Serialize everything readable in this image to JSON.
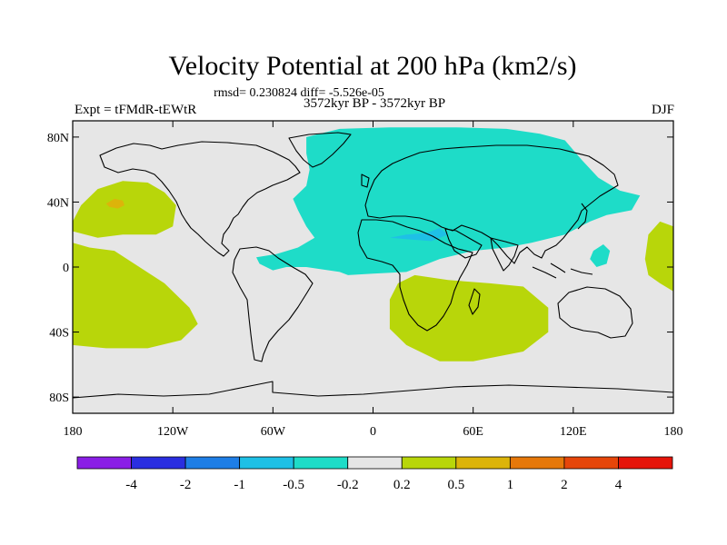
{
  "chart_data": {
    "type": "heatmap",
    "title": "Velocity Potential at 200 hPa (km2/s)",
    "subtitle_stats": "rmsd= 0.230824 diff= -5.526e-05",
    "left_label": "Expt = tFMdR-tEWtR",
    "center_label": "3572kyr BP - 3572kyr BP",
    "right_label": "DJF",
    "x_range": [
      -180,
      180
    ],
    "y_range": [
      -90,
      90
    ],
    "x_ticks": [
      {
        "value": -180,
        "label": "180"
      },
      {
        "value": -120,
        "label": "120W"
      },
      {
        "value": -60,
        "label": "60W"
      },
      {
        "value": 0,
        "label": "0"
      },
      {
        "value": 60,
        "label": "60E"
      },
      {
        "value": 120,
        "label": "120E"
      },
      {
        "value": 180,
        "label": "180"
      }
    ],
    "y_ticks": [
      {
        "value": 80,
        "label": "80N"
      },
      {
        "value": 40,
        "label": "40N"
      },
      {
        "value": 0,
        "label": "0"
      },
      {
        "value": -40,
        "label": "40S"
      },
      {
        "value": -80,
        "label": "80S"
      }
    ],
    "colorbar": {
      "colors": [
        "#8a1ee6",
        "#2a2ee0",
        "#1e7ee6",
        "#1ec0e6",
        "#1edcc8",
        "#e6e6e6",
        "#b8d60a",
        "#dcb40a",
        "#e6780a",
        "#e6460a",
        "#e6140a"
      ],
      "labels": [
        "-4",
        "-2",
        "-1",
        "-0.5",
        "-0.2",
        "0.2",
        "0.5",
        "1",
        "2",
        "4"
      ]
    },
    "regions": [
      {
        "name": "eurasia-africa-negative",
        "level": "-0.5 to -0.2",
        "color": "#1edcc8",
        "outline": [
          [
            -40,
            80
          ],
          [
            -20,
            85
          ],
          [
            10,
            86
          ],
          [
            50,
            86
          ],
          [
            80,
            85
          ],
          [
            100,
            82
          ],
          [
            115,
            78
          ],
          [
            125,
            66
          ],
          [
            135,
            55
          ],
          [
            148,
            47
          ],
          [
            160,
            44
          ],
          [
            155,
            35
          ],
          [
            140,
            32
          ],
          [
            130,
            28
          ],
          [
            115,
            20
          ],
          [
            95,
            15
          ],
          [
            80,
            12
          ],
          [
            60,
            10
          ],
          [
            40,
            5
          ],
          [
            20,
            -3
          ],
          [
            0,
            -4
          ],
          [
            -15,
            -5
          ],
          [
            -20,
            -3
          ],
          [
            -40,
            0
          ],
          [
            -52,
            0
          ],
          [
            -60,
            -2
          ],
          [
            -68,
            2
          ],
          [
            -70,
            6
          ],
          [
            -58,
            8
          ],
          [
            -45,
            12
          ],
          [
            -35,
            18
          ],
          [
            -40,
            25
          ],
          [
            -45,
            35
          ],
          [
            -48,
            42
          ],
          [
            -40,
            50
          ],
          [
            -38,
            60
          ],
          [
            -40,
            70
          ]
        ]
      },
      {
        "name": "western-pacific-negative",
        "level": "-0.5 to -0.2",
        "color": "#1edcc8",
        "outline": [
          [
            130,
            5
          ],
          [
            132,
            10
          ],
          [
            138,
            14
          ],
          [
            142,
            10
          ],
          [
            140,
            2
          ],
          [
            134,
            0
          ]
        ]
      },
      {
        "name": "arabia-negative-core",
        "level": "-1 to -0.5",
        "color": "#1ec0e6",
        "outline": [
          [
            10,
            18
          ],
          [
            20,
            20
          ],
          [
            32,
            21
          ],
          [
            40,
            24
          ],
          [
            45,
            20
          ],
          [
            35,
            16
          ],
          [
            22,
            17
          ]
        ]
      },
      {
        "name": "north-pacific-positive",
        "level": "0.2 to 0.5",
        "color": "#b8d60a",
        "outline": [
          [
            -180,
            28
          ],
          [
            -175,
            38
          ],
          [
            -165,
            48
          ],
          [
            -150,
            53
          ],
          [
            -135,
            52
          ],
          [
            -125,
            46
          ],
          [
            -118,
            38
          ],
          [
            -120,
            25
          ],
          [
            -130,
            20
          ],
          [
            -150,
            20
          ],
          [
            -165,
            18
          ],
          [
            -180,
            22
          ]
        ]
      },
      {
        "name": "north-pacific-positive-core",
        "level": "0.5 to 1",
        "color": "#dcb40a",
        "outline": [
          [
            -160,
            39
          ],
          [
            -155,
            42
          ],
          [
            -150,
            41
          ],
          [
            -149,
            38
          ],
          [
            -153,
            36
          ],
          [
            -158,
            37
          ]
        ]
      },
      {
        "name": "south-pacific-positive",
        "level": "0.2 to 0.5",
        "color": "#b8d60a",
        "outline": [
          [
            -180,
            15
          ],
          [
            -170,
            12
          ],
          [
            -155,
            10
          ],
          [
            -140,
            0
          ],
          [
            -125,
            -10
          ],
          [
            -110,
            -25
          ],
          [
            -105,
            -35
          ],
          [
            -115,
            -45
          ],
          [
            -135,
            -50
          ],
          [
            -160,
            -50
          ],
          [
            -180,
            -48
          ]
        ]
      },
      {
        "name": "east-pacific-edge-positive",
        "level": "0.2 to 0.5",
        "color": "#b8d60a",
        "outline": [
          [
            180,
            25
          ],
          [
            172,
            28
          ],
          [
            165,
            20
          ],
          [
            163,
            5
          ],
          [
            165,
            -5
          ],
          [
            172,
            -10
          ],
          [
            180,
            -15
          ]
        ]
      },
      {
        "name": "southern-africa-indian-positive",
        "level": "0.2 to 0.5",
        "color": "#b8d60a",
        "outline": [
          [
            10,
            -20
          ],
          [
            15,
            -10
          ],
          [
            25,
            -5
          ],
          [
            45,
            -8
          ],
          [
            70,
            -10
          ],
          [
            90,
            -12
          ],
          [
            105,
            -25
          ],
          [
            105,
            -40
          ],
          [
            90,
            -52
          ],
          [
            60,
            -58
          ],
          [
            40,
            -58
          ],
          [
            20,
            -48
          ],
          [
            10,
            -38
          ]
        ]
      }
    ]
  }
}
